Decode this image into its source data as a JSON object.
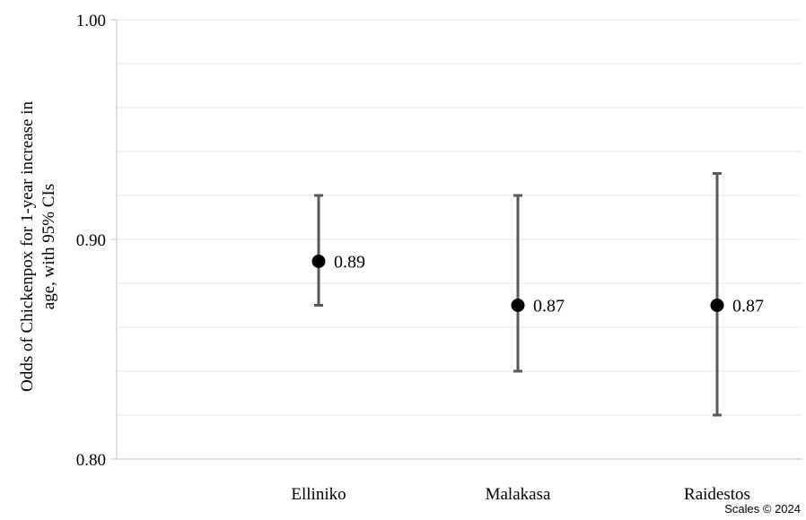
{
  "chart_data": {
    "type": "scatter",
    "subtype": "point-with-error-bars",
    "title": "",
    "xlabel": "",
    "ylabel_lines": [
      "Odds of Chickenpox for 1-year increase in",
      "age, with 95% CIs"
    ],
    "ylim": [
      0.8,
      1.0
    ],
    "yticks": [
      {
        "value": 0.8,
        "label": "0.80"
      },
      {
        "value": 0.9,
        "label": "0.90"
      },
      {
        "value": 1.0,
        "label": "1.00"
      }
    ],
    "minor_grid_step": 0.02,
    "grid": true,
    "legend": "none",
    "categories": [
      "Elliniko",
      "Malakasa",
      "Raidestos"
    ],
    "points": [
      {
        "category": "Elliniko",
        "value": 0.89,
        "ci_low": 0.87,
        "ci_high": 0.92,
        "label": "0.89"
      },
      {
        "category": "Malakasa",
        "value": 0.87,
        "ci_low": 0.84,
        "ci_high": 0.92,
        "label": "0.87"
      },
      {
        "category": "Raidestos",
        "value": 0.87,
        "ci_low": 0.82,
        "ci_high": 0.93,
        "label": "0.87"
      }
    ],
    "colors": {
      "marker": "#000000",
      "errorbar": "#595959",
      "gridline": "#e6e6e6",
      "axis": "#d9d9d9"
    }
  },
  "credit": "Scales © 2024"
}
